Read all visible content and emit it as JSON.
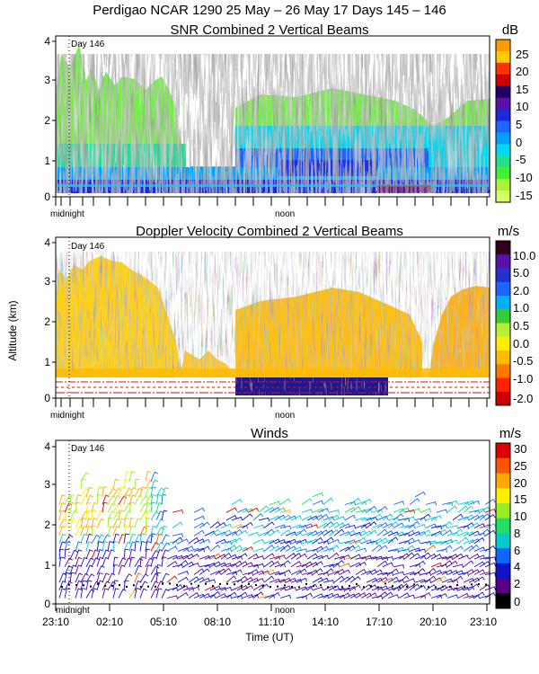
{
  "chart_data": {
    "type": "multi-panel time-height profiler plot",
    "title": "Perdigao NCAR 1290  25 May – 26 May 17 Days 145 – 146",
    "day_marker": "Day 146",
    "midnight_label": "midnight",
    "noon_label": "noon",
    "y_ticks": [
      "0",
      "1",
      "2",
      "3",
      "4"
    ],
    "ylim": [
      0,
      4.2
    ],
    "time_ticks": [
      "23:10",
      "02:10",
      "05:10",
      "08:10",
      "11:10",
      "14:10",
      "17:10",
      "20:10",
      "23:10"
    ],
    "xlabel": "Time (UT)",
    "ylabel": "Altitude (km)",
    "panels": [
      {
        "name": "snr",
        "title": "SNR Combined 2 Vertical Beams",
        "type": "heatmap",
        "units": "dB",
        "colorbar_labels": [
          "25",
          "20",
          "15",
          "10",
          "5",
          "0",
          "-5",
          "-10",
          "-15"
        ],
        "colorbar_colors": [
          "#ff9900",
          "#ffcc00",
          "#ff3300",
          "#cc0000",
          "#220066",
          "#5511aa",
          "#1e2ad8",
          "#1a66ff",
          "#00a0ff",
          "#00d7f0",
          "#22e08c",
          "#44ee33",
          "#aaf533",
          "#d8ff66"
        ]
      },
      {
        "name": "doppler",
        "title": "Doppler Velocity Combined 2 Vertical Beams",
        "type": "heatmap",
        "units": "m/s",
        "colorbar_labels": [
          "10.0",
          "5.0",
          "2.0",
          "1.0",
          "0.5",
          "0.0",
          "-0.5",
          "-1.0",
          "-2.0"
        ],
        "colorbar_colors": [
          "#330022",
          "#5511aa",
          "#2233cc",
          "#1a66ff",
          "#00b0ff",
          "#33cc33",
          "#b8ee33",
          "#ffee00",
          "#ffbb00",
          "#ff7700",
          "#ff2200",
          "#cc0000"
        ]
      },
      {
        "name": "winds",
        "title": "Winds",
        "type": "wind barbs",
        "units": "m/s",
        "colorbar_labels": [
          "30",
          "25",
          "20",
          "15",
          "10",
          "8",
          "6",
          "4",
          "2",
          "0"
        ],
        "colorbar_colors": [
          "#dd0000",
          "#ff5500",
          "#ffaa00",
          "#ffee00",
          "#99ee22",
          "#22dd66",
          "#00cccc",
          "#1166ff",
          "#1111cc",
          "#550088",
          "#000000"
        ]
      }
    ]
  }
}
